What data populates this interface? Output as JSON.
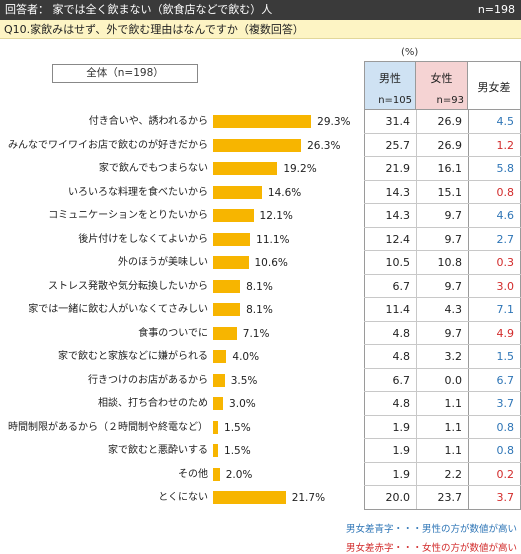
{
  "header": {
    "respondent": "回答者： 家では全く飲まない（飲食店などで飲む）人",
    "n_total": "n=198"
  },
  "question": "Q10.家飲みはせず、外で飲む理由はなんですか（複数回答）",
  "total_label": "全体（n=198）",
  "percent_unit": "(%)",
  "table_header": {
    "male": "男性",
    "male_n": "n=105",
    "female": "女性",
    "female_n": "n=93",
    "diff": "男女差"
  },
  "colors": {
    "bar": "#f7b500",
    "blue": "#2e75b6",
    "red": "#d22b2b",
    "male_bg": "#cfe2f3",
    "female_bg": "#f5d3d3"
  },
  "legend": {
    "blue": "男女差青字・・・男性の方が数値が高い",
    "red": "男女差赤字・・・女性の方が数値が高い"
  },
  "chart_data": {
    "type": "bar",
    "orientation": "horizontal",
    "unit": "%",
    "categories": [
      "付き合いや、誘われるから",
      "みんなでワイワイお店で飲むのが好きだから",
      "家で飲んでもつまらない",
      "いろいろな料理を食べたいから",
      "コミュニケーションをとりたいから",
      "後片付けをしなくてよいから",
      "外のほうが美味しい",
      "ストレス発散や気分転換したいから",
      "家では一緒に飲む人がいなくてさみしい",
      "食事のついでに",
      "家で飲むと家族などに嫌がられる",
      "行きつけのお店があるから",
      "相談、打ち合わせのため",
      "時間制限があるから（２時間制や終電など）",
      "家で飲むと悪酔いする",
      "その他",
      "とくにない"
    ],
    "values": [
      29.3,
      26.3,
      19.2,
      14.6,
      12.1,
      11.1,
      10.6,
      8.1,
      8.1,
      7.1,
      4.0,
      3.5,
      3.0,
      1.5,
      1.5,
      2.0,
      21.7
    ],
    "value_labels": [
      "29.3%",
      "26.3%",
      "19.2%",
      "14.6%",
      "12.1%",
      "11.1%",
      "10.6%",
      "8.1%",
      "8.1%",
      "7.1%",
      "4.0%",
      "3.5%",
      "3.0%",
      "1.5%",
      "1.5%",
      "2.0%",
      "21.7%"
    ],
    "table": {
      "male": [
        "31.4",
        "25.7",
        "21.9",
        "14.3",
        "14.3",
        "12.4",
        "10.5",
        "6.7",
        "11.4",
        "4.8",
        "4.8",
        "6.7",
        "4.8",
        "1.9",
        "1.9",
        "1.9",
        "20.0"
      ],
      "female": [
        "26.9",
        "26.9",
        "16.1",
        "15.1",
        "9.7",
        "9.7",
        "10.8",
        "9.7",
        "4.3",
        "9.7",
        "3.2",
        "0.0",
        "1.1",
        "1.1",
        "1.1",
        "2.2",
        "23.7"
      ],
      "diff": [
        "4.5",
        "1.2",
        "5.8",
        "0.8",
        "4.6",
        "2.7",
        "0.3",
        "3.0",
        "7.1",
        "4.9",
        "1.5",
        "6.7",
        "3.7",
        "0.8",
        "0.8",
        "0.2",
        "3.7"
      ],
      "diff_color": [
        "blue",
        "red",
        "blue",
        "red",
        "blue",
        "blue",
        "red",
        "red",
        "blue",
        "red",
        "blue",
        "blue",
        "blue",
        "blue",
        "blue",
        "red",
        "red"
      ]
    }
  }
}
